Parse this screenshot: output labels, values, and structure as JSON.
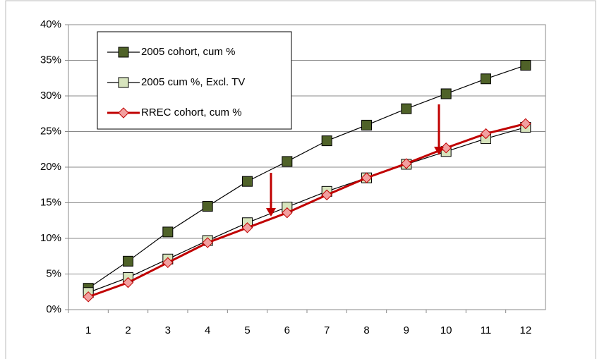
{
  "chart_data": {
    "type": "line",
    "categories": [
      1,
      2,
      3,
      4,
      5,
      6,
      7,
      8,
      9,
      10,
      11,
      12
    ],
    "series": [
      {
        "name": "2005 cohort, cum %",
        "color": "#4f6228",
        "marker": "square",
        "values": [
          3.0,
          6.8,
          10.9,
          14.5,
          18.0,
          20.8,
          23.7,
          25.9,
          28.2,
          30.3,
          32.4,
          34.3
        ]
      },
      {
        "name": "2005 cum %, Excl. TV",
        "color": "#d7e4bd",
        "marker": "square",
        "values": [
          2.4,
          4.5,
          7.1,
          9.7,
          12.2,
          14.4,
          16.6,
          18.5,
          20.4,
          22.2,
          24.0,
          25.6
        ]
      },
      {
        "name": "RREC cohort, cum %",
        "color": "#f2a0a0",
        "marker": "diamond",
        "values": [
          1.8,
          3.8,
          6.6,
          9.4,
          11.5,
          13.6,
          16.1,
          18.5,
          20.5,
          22.7,
          24.7,
          26.1
        ]
      }
    ],
    "ylim": [
      0,
      40
    ],
    "yticks": [
      {
        "value": 0,
        "label": "0%"
      },
      {
        "value": 5,
        "label": "5%"
      },
      {
        "value": 10,
        "label": "10%"
      },
      {
        "value": 15,
        "label": "15%"
      },
      {
        "value": 20,
        "label": "20%"
      },
      {
        "value": 25,
        "label": "25%"
      },
      {
        "value": 30,
        "label": "30%"
      },
      {
        "value": 35,
        "label": "35%"
      },
      {
        "value": 40,
        "label": "40%"
      }
    ],
    "grid": true
  }
}
